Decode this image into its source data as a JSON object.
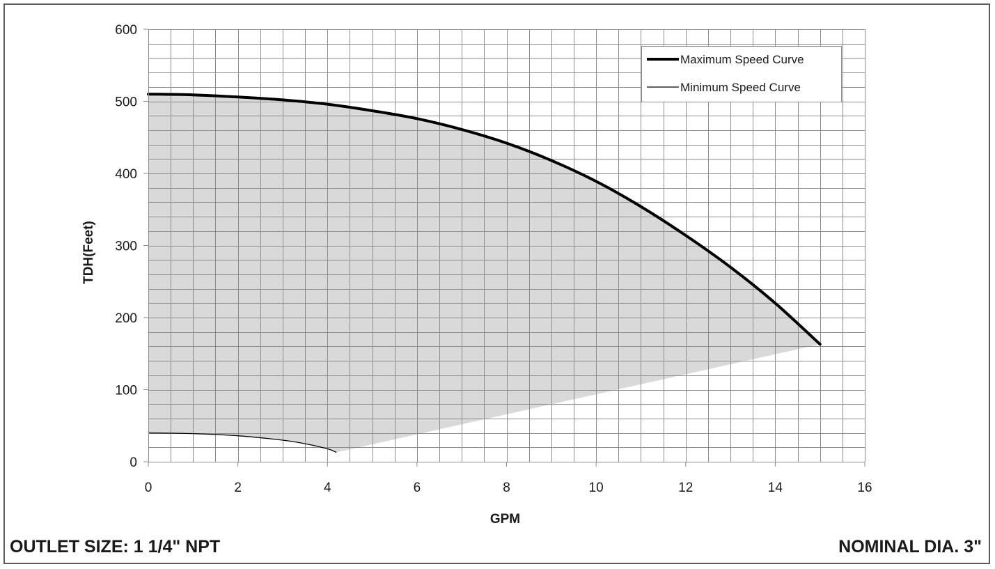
{
  "chart_data": {
    "type": "line",
    "title": "",
    "xlabel": "GPM",
    "ylabel": "TDH(Feet)",
    "xlim": [
      0,
      16
    ],
    "ylim": [
      0,
      600
    ],
    "x_ticks": [
      "0",
      "2",
      "4",
      "6",
      "8",
      "10",
      "12",
      "14",
      "16"
    ],
    "y_ticks": [
      "0",
      "100",
      "200",
      "300",
      "400",
      "500",
      "600"
    ],
    "grid": true,
    "legend_position": "top-right",
    "shaded_region": "operating range between minimum and maximum speed curves",
    "series": [
      {
        "name": "Maximum Speed Curve",
        "line_weight": "thick",
        "x": [
          0,
          1,
          2,
          3,
          4,
          5,
          6,
          7,
          8,
          9,
          10,
          11,
          12,
          13,
          14,
          15
        ],
        "y": [
          510,
          509,
          506,
          502,
          496,
          487,
          476,
          461,
          442,
          418,
          389,
          354,
          314,
          270,
          220,
          163
        ]
      },
      {
        "name": "Minimum Speed Curve",
        "line_weight": "thin",
        "x": [
          0,
          1,
          2,
          3,
          3.5,
          4,
          4.2
        ],
        "y": [
          40,
          39,
          36,
          30,
          25,
          18,
          13
        ]
      }
    ]
  },
  "footer": {
    "left_text": "OUTLET SIZE: 1 1/4\" NPT",
    "right_text": "NOMINAL DIA. 3\""
  },
  "colors": {
    "shade": "#d9d9d9",
    "grid": "#8c8c8c",
    "axis": "#8c8c8c",
    "line": "#000000",
    "text": "#1a1a1a"
  }
}
